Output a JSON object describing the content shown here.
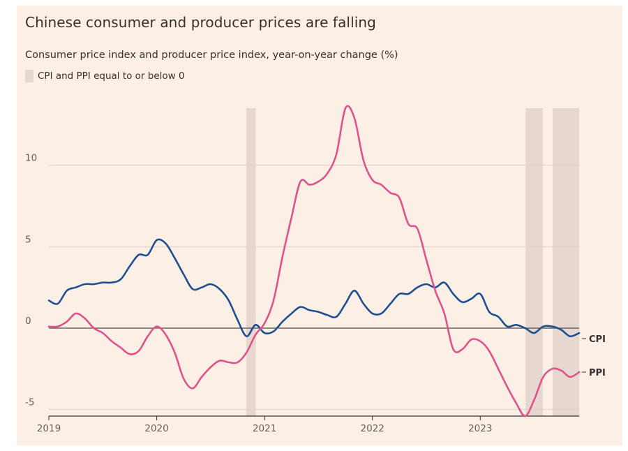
{
  "chart_data": {
    "type": "line",
    "title": "Chinese consumer and producer prices are falling",
    "subtitle": "Consumer price index and producer price index, year-on-year change (%)",
    "shading_legend": "CPI and PPI equal to or below 0",
    "xlabel": "",
    "ylabel": "",
    "xlim": [
      2019.0,
      2023.917
    ],
    "ylim": [
      -5.4,
      13.5
    ],
    "y_ticks": [
      10,
      5,
      0,
      -5
    ],
    "y_tick_labels": [
      "10",
      "5",
      "0",
      "-5"
    ],
    "x_ticks": [
      2019,
      2020,
      2021,
      2022,
      2023
    ],
    "x_tick_labels": [
      "2019",
      "2020",
      "2021",
      "2022",
      "2023"
    ],
    "shaded_periods": [
      [
        2020.83,
        2020.92
      ],
      [
        2023.42,
        2023.58
      ],
      [
        2023.67,
        2023.917
      ]
    ],
    "series": [
      {
        "name": "CPI",
        "label": "CPI",
        "color": "#1e4f91",
        "x": [
          2019.0,
          2019.083,
          2019.167,
          2019.25,
          2019.333,
          2019.417,
          2019.5,
          2019.583,
          2019.667,
          2019.75,
          2019.833,
          2019.917,
          2020.0,
          2020.083,
          2020.167,
          2020.25,
          2020.333,
          2020.417,
          2020.5,
          2020.583,
          2020.667,
          2020.75,
          2020.833,
          2020.917,
          2021.0,
          2021.083,
          2021.167,
          2021.25,
          2021.333,
          2021.417,
          2021.5,
          2021.583,
          2021.667,
          2021.75,
          2021.833,
          2021.917,
          2022.0,
          2022.083,
          2022.167,
          2022.25,
          2022.333,
          2022.417,
          2022.5,
          2022.583,
          2022.667,
          2022.75,
          2022.833,
          2022.917,
          2023.0,
          2023.083,
          2023.167,
          2023.25,
          2023.333,
          2023.417,
          2023.5,
          2023.583,
          2023.667,
          2023.75,
          2023.833,
          2023.917
        ],
        "values": [
          1.7,
          1.5,
          2.3,
          2.5,
          2.7,
          2.7,
          2.8,
          2.8,
          3.0,
          3.8,
          4.5,
          4.5,
          5.4,
          5.2,
          4.3,
          3.3,
          2.4,
          2.5,
          2.7,
          2.4,
          1.7,
          0.5,
          -0.5,
          0.2,
          -0.3,
          -0.2,
          0.4,
          0.9,
          1.3,
          1.1,
          1.0,
          0.8,
          0.7,
          1.5,
          2.3,
          1.5,
          0.9,
          0.9,
          1.5,
          2.1,
          2.1,
          2.5,
          2.7,
          2.5,
          2.8,
          2.1,
          1.6,
          1.8,
          2.1,
          1.0,
          0.7,
          0.1,
          0.2,
          0.0,
          -0.3,
          0.1,
          0.1,
          -0.1,
          -0.5,
          -0.3
        ]
      },
      {
        "name": "PPI",
        "label": "PPI",
        "color": "#e0528a",
        "x": [
          2019.0,
          2019.083,
          2019.167,
          2019.25,
          2019.333,
          2019.417,
          2019.5,
          2019.583,
          2019.667,
          2019.75,
          2019.833,
          2019.917,
          2020.0,
          2020.083,
          2020.167,
          2020.25,
          2020.333,
          2020.417,
          2020.5,
          2020.583,
          2020.667,
          2020.75,
          2020.833,
          2020.917,
          2021.0,
          2021.083,
          2021.167,
          2021.25,
          2021.333,
          2021.417,
          2021.5,
          2021.583,
          2021.667,
          2021.75,
          2021.833,
          2021.917,
          2022.0,
          2022.083,
          2022.167,
          2022.25,
          2022.333,
          2022.417,
          2022.5,
          2022.583,
          2022.667,
          2022.75,
          2022.833,
          2022.917,
          2023.0,
          2023.083,
          2023.167,
          2023.25,
          2023.333,
          2023.417,
          2023.5,
          2023.583,
          2023.667,
          2023.75,
          2023.833,
          2023.917
        ],
        "values": [
          0.1,
          0.1,
          0.4,
          0.9,
          0.6,
          0.0,
          -0.3,
          -0.8,
          -1.2,
          -1.6,
          -1.4,
          -0.5,
          0.1,
          -0.4,
          -1.5,
          -3.1,
          -3.7,
          -3.0,
          -2.4,
          -2.0,
          -2.1,
          -2.1,
          -1.5,
          -0.4,
          0.3,
          1.7,
          4.4,
          6.8,
          9.0,
          8.8,
          9.0,
          9.5,
          10.7,
          13.5,
          12.9,
          10.3,
          9.1,
          8.8,
          8.3,
          8.0,
          6.4,
          6.1,
          4.2,
          2.3,
          0.9,
          -1.3,
          -1.3,
          -0.7,
          -0.8,
          -1.4,
          -2.5,
          -3.6,
          -4.6,
          -5.4,
          -4.4,
          -3.0,
          -2.5,
          -2.6,
          -3.0,
          -2.7
        ]
      }
    ]
  },
  "colors": {
    "background": "#fcefe6",
    "shade": "#e6d8d0",
    "grid": "#e6cdc4",
    "zero_line": "#6b6662"
  }
}
